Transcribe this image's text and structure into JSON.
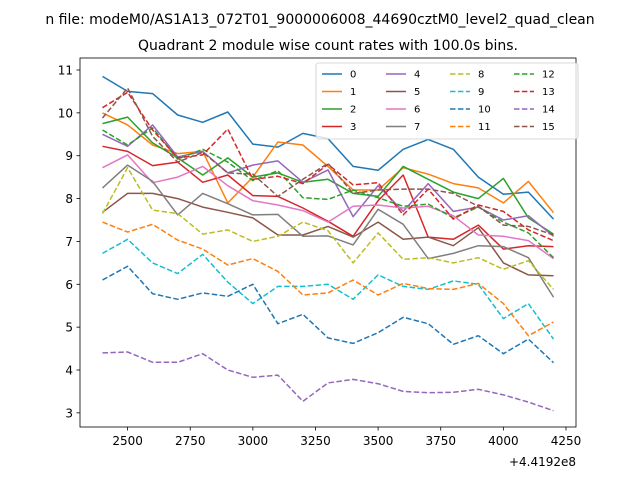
{
  "chart_data": {
    "type": "line",
    "suptitle": "n file: modeM0/AS1A13_072T01_9000006008_44690cztM0_level2_quad_clean",
    "title": "Quadrant 2 module wise count rates with 100.0s bins.",
    "xlabel": "",
    "ylabel": "",
    "x_offset_label": "+4.4192e8",
    "x_ticks": [
      2500,
      2750,
      3000,
      3250,
      3500,
      3750,
      4000,
      4250
    ],
    "y_ticks": [
      3,
      4,
      5,
      6,
      7,
      8,
      9,
      10,
      11
    ],
    "xlim": [
      2310,
      4290
    ],
    "ylim": [
      2.67,
      11.28
    ],
    "grid": false,
    "legend_position": "top-right",
    "legend_columns": 4,
    "x": [
      2400,
      2500,
      2600,
      2700,
      2800,
      2900,
      3000,
      3100,
      3200,
      3300,
      3400,
      3500,
      3600,
      3700,
      3800,
      3900,
      4000,
      4100,
      4200
    ],
    "series": [
      {
        "name": "0",
        "color": "#1f77b4",
        "dash": false,
        "values": [
          10.85,
          10.5,
          10.45,
          9.95,
          9.78,
          10.02,
          9.27,
          9.2,
          9.52,
          9.4,
          8.75,
          8.66,
          9.15,
          9.38,
          9.15,
          8.5,
          8.1,
          8.15,
          7.52
        ]
      },
      {
        "name": "1",
        "color": "#ff7f0e",
        "dash": false,
        "values": [
          10.0,
          9.72,
          9.25,
          9.05,
          9.1,
          7.9,
          8.5,
          9.32,
          9.25,
          8.75,
          8.2,
          8.2,
          8.72,
          8.57,
          8.35,
          8.25,
          7.9,
          8.4,
          7.67
        ]
      },
      {
        "name": "2",
        "color": "#2ca02c",
        "dash": false,
        "values": [
          9.75,
          9.9,
          9.3,
          8.95,
          8.55,
          8.95,
          8.5,
          8.6,
          8.38,
          8.45,
          8.12,
          8.05,
          8.75,
          8.45,
          8.15,
          8.0,
          8.47,
          7.55,
          7.17
        ]
      },
      {
        "name": "3",
        "color": "#d62728",
        "dash": false,
        "values": [
          9.22,
          9.1,
          8.77,
          8.85,
          8.38,
          8.55,
          8.07,
          8.05,
          7.78,
          7.47,
          7.12,
          7.95,
          8.55,
          7.1,
          7.05,
          7.38,
          6.82,
          6.9,
          6.88
        ]
      },
      {
        "name": "4",
        "color": "#9467bd",
        "dash": false,
        "values": [
          9.5,
          9.22,
          9.72,
          8.97,
          9.1,
          8.6,
          8.78,
          8.88,
          8.38,
          8.67,
          7.58,
          8.3,
          7.7,
          8.35,
          7.7,
          7.8,
          7.5,
          7.6,
          7.12
        ]
      },
      {
        "name": "5",
        "color": "#8c564b",
        "dash": false,
        "values": [
          7.68,
          8.12,
          8.12,
          8.0,
          7.8,
          7.68,
          7.55,
          7.15,
          7.15,
          7.35,
          7.1,
          7.45,
          7.05,
          7.1,
          6.9,
          7.32,
          6.5,
          6.22,
          6.2
        ]
      },
      {
        "name": "6",
        "color": "#e377c2",
        "dash": false,
        "values": [
          8.72,
          9.02,
          8.37,
          8.5,
          8.75,
          8.3,
          7.95,
          7.85,
          7.72,
          7.45,
          7.82,
          7.85,
          7.78,
          7.82,
          7.6,
          7.15,
          7.12,
          7.02,
          6.6
        ]
      },
      {
        "name": "7",
        "color": "#7f7f7f",
        "dash": false,
        "values": [
          8.25,
          8.78,
          8.4,
          7.62,
          8.12,
          7.88,
          7.62,
          7.63,
          7.12,
          7.13,
          6.92,
          7.75,
          7.4,
          6.6,
          6.72,
          6.9,
          6.88,
          6.62,
          5.7
        ]
      },
      {
        "name": "8",
        "color": "#bcbd22",
        "dash": true,
        "values": [
          7.65,
          8.72,
          7.73,
          7.65,
          7.17,
          7.27,
          7.0,
          7.12,
          7.45,
          7.25,
          6.5,
          7.2,
          6.58,
          6.62,
          6.5,
          6.62,
          6.35,
          6.55,
          5.88
        ]
      },
      {
        "name": "9",
        "color": "#17becf",
        "dash": true,
        "values": [
          6.72,
          7.05,
          6.5,
          6.25,
          6.7,
          6.05,
          5.55,
          5.95,
          5.95,
          6.0,
          5.65,
          6.22,
          5.95,
          5.88,
          6.08,
          6.0,
          5.2,
          5.55,
          4.72
        ]
      },
      {
        "name": "10",
        "color": "#1f77b4",
        "dash": true,
        "values": [
          6.1,
          6.42,
          5.78,
          5.65,
          5.8,
          5.72,
          6.0,
          5.08,
          5.3,
          4.75,
          4.62,
          4.87,
          5.23,
          5.08,
          4.6,
          4.8,
          4.38,
          4.72,
          4.17
        ]
      },
      {
        "name": "11",
        "color": "#ff7f0e",
        "dash": true,
        "values": [
          7.45,
          7.22,
          7.4,
          7.03,
          6.82,
          6.45,
          6.6,
          6.3,
          5.75,
          5.8,
          6.1,
          5.75,
          6.02,
          5.9,
          5.88,
          6.02,
          5.55,
          4.8,
          5.12
        ]
      },
      {
        "name": "12",
        "color": "#2ca02c",
        "dash": true,
        "values": [
          9.6,
          9.25,
          9.65,
          8.92,
          9.15,
          8.85,
          8.42,
          8.65,
          8.02,
          7.98,
          8.2,
          8.02,
          7.82,
          7.87,
          7.55,
          7.8,
          7.45,
          7.2,
          6.62
        ]
      },
      {
        "name": "13",
        "color": "#d62728",
        "dash": true,
        "values": [
          10.12,
          10.48,
          9.6,
          8.95,
          9.02,
          9.62,
          8.45,
          8.52,
          8.35,
          8.8,
          8.32,
          8.37,
          7.62,
          8.22,
          7.52,
          7.85,
          7.7,
          7.27,
          7.02
        ]
      },
      {
        "name": "14",
        "color": "#9467bd",
        "dash": true,
        "values": [
          4.4,
          4.42,
          4.18,
          4.18,
          4.38,
          4.0,
          3.83,
          3.88,
          3.27,
          3.7,
          3.78,
          3.68,
          3.5,
          3.47,
          3.48,
          3.55,
          3.42,
          3.25,
          3.05
        ]
      },
      {
        "name": "15",
        "color": "#8c564b",
        "dash": true,
        "values": [
          9.88,
          10.58,
          9.45,
          8.85,
          9.08,
          8.6,
          8.57,
          8.05,
          8.45,
          8.82,
          8.12,
          8.2,
          8.22,
          8.22,
          8.12,
          7.82,
          7.38,
          7.35,
          7.15
        ]
      }
    ]
  }
}
